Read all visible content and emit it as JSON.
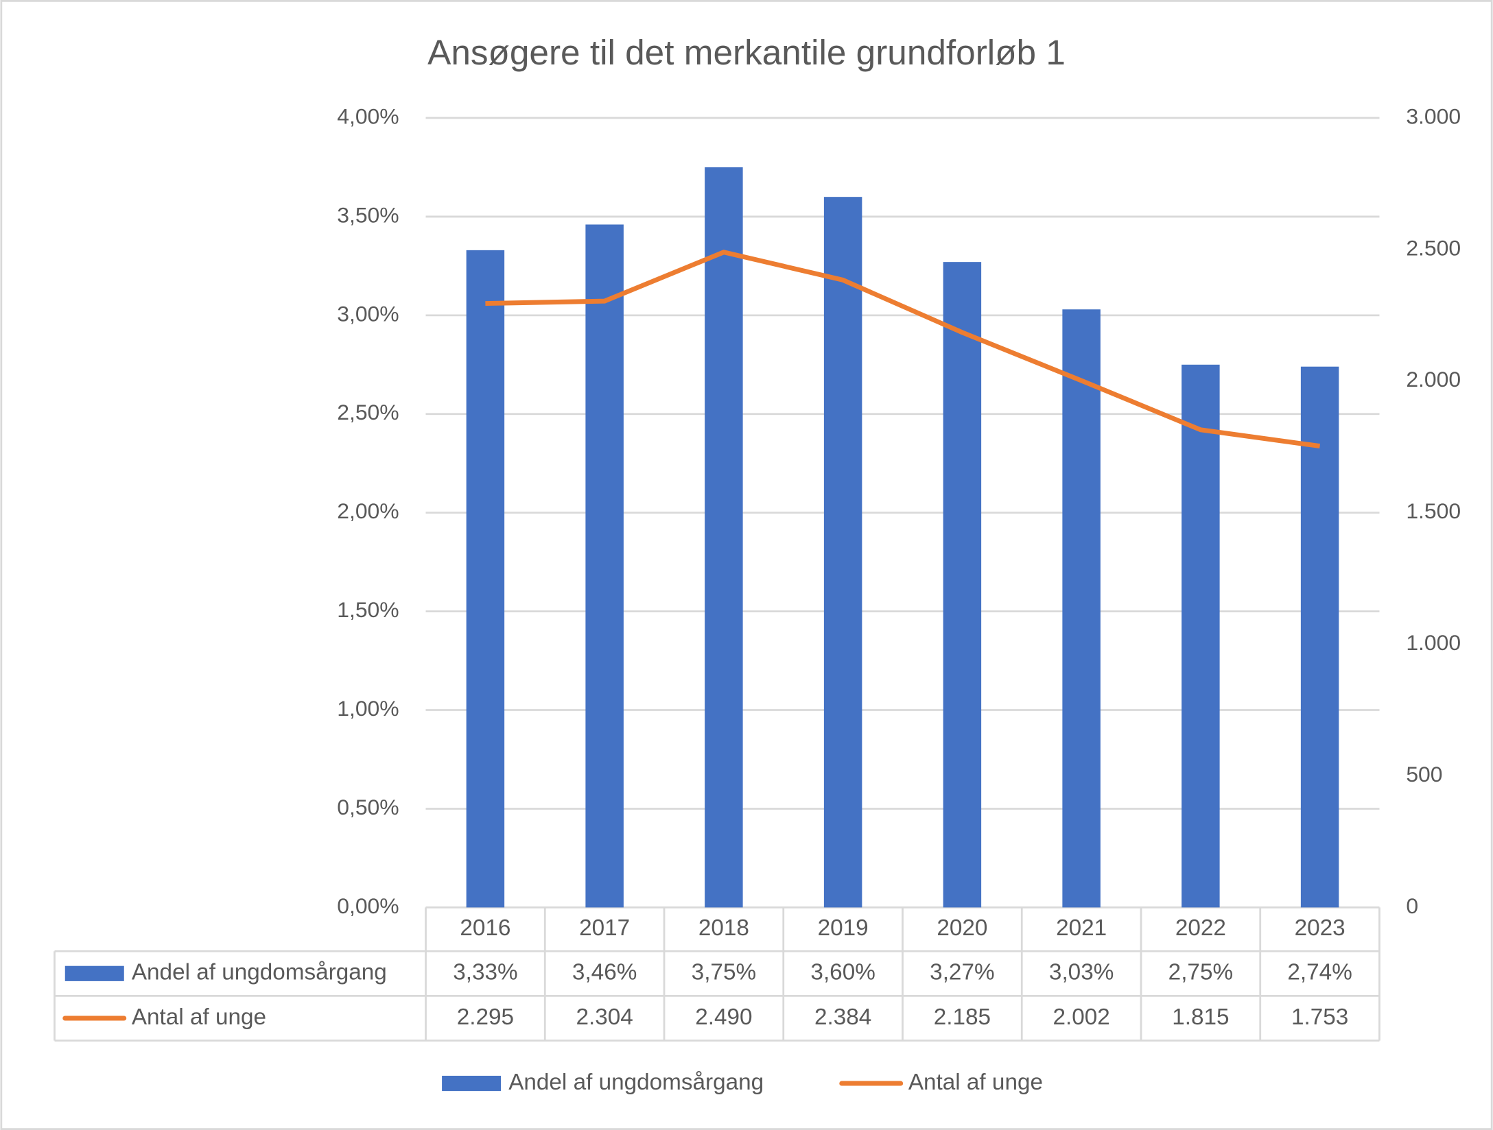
{
  "chart_data": {
    "type": "bar_line",
    "title": "Ansøgere til det merkantile grundforløb 1",
    "categories": [
      "2016",
      "2017",
      "2018",
      "2019",
      "2020",
      "2021",
      "2022",
      "2023"
    ],
    "series": [
      {
        "name": "Andel af ungdomsårgang",
        "type": "bar",
        "color": "#4472c4",
        "values": [
          3.33,
          3.46,
          3.75,
          3.6,
          3.27,
          3.03,
          2.75,
          2.74
        ],
        "value_labels": [
          "3,33%",
          "3,46%",
          "3,75%",
          "3,60%",
          "3,27%",
          "3,03%",
          "2,75%",
          "2,74%"
        ]
      },
      {
        "name": "Antal af unge",
        "type": "line",
        "color": "#ed7d31",
        "axis": "y2",
        "values": [
          2295,
          2304,
          2490,
          2384,
          2185,
          2002,
          1815,
          1753
        ],
        "value_labels": [
          "2.295",
          "2.304",
          "2.490",
          "2.384",
          "2.185",
          "2.002",
          "1.815",
          "1.753"
        ]
      }
    ],
    "ylim": [
      0,
      4
    ],
    "yticks": [
      {
        "value": 0,
        "label": "0,00%"
      },
      {
        "value": 0.5,
        "label": "0,50%"
      },
      {
        "value": 1,
        "label": "1,00%"
      },
      {
        "value": 1.5,
        "label": "1,50%"
      },
      {
        "value": 2,
        "label": "2,00%"
      },
      {
        "value": 2.5,
        "label": "2,50%"
      },
      {
        "value": 3,
        "label": "3,00%"
      },
      {
        "value": 3.5,
        "label": "3,50%"
      },
      {
        "value": 4,
        "label": "4,00%"
      }
    ],
    "y2lim": [
      0,
      3000
    ],
    "y2ticks": [
      0,
      {
        "value": 500,
        "label": "500"
      },
      {
        "value": 1000,
        "label": "1.000"
      },
      {
        "value": 1500,
        "label": "1.500"
      },
      {
        "value": 2000,
        "label": "2.000"
      },
      {
        "value": 2500,
        "label": "2.500"
      },
      {
        "value": 3000,
        "label": "3.000"
      }
    ],
    "grid": true,
    "legend": "bottom"
  }
}
